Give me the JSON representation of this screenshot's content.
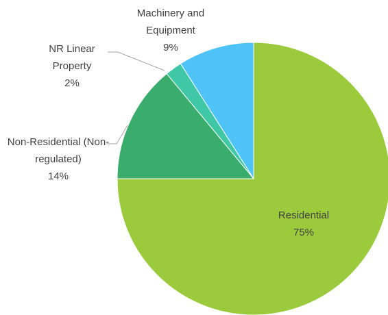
{
  "chart_data": {
    "type": "pie",
    "categories": [
      "Residential",
      "Non-Residential (Non-regulated)",
      "NR Linear Property",
      "Machinery and Equipment"
    ],
    "values": [
      75,
      14,
      2,
      9
    ],
    "value_labels": [
      "75%",
      "14%",
      "2%",
      "9%"
    ],
    "colors": [
      "#9bcb3c",
      "#3aad6c",
      "#40c7a6",
      "#4fc3f7"
    ]
  }
}
